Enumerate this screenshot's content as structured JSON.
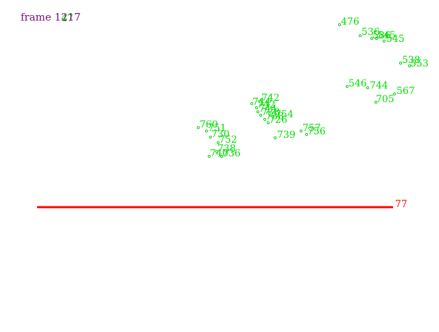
{
  "frame": {
    "label": "frame 1217"
  },
  "overlay_label": "47",
  "colors": {
    "background": "#ffffff",
    "points": "#00dd00",
    "frame_text": "#7a0b7a",
    "track_line": "#ff0000"
  },
  "points": [
    {
      "id": "476"
    },
    {
      "id": "536"
    },
    {
      "id": "545"
    },
    {
      "id": "538"
    },
    {
      "id": "553"
    },
    {
      "id": "546"
    },
    {
      "id": "744"
    },
    {
      "id": "567"
    },
    {
      "id": "705"
    },
    {
      "id": "742"
    },
    {
      "id": "744"
    },
    {
      "id": "754"
    },
    {
      "id": "739"
    },
    {
      "id": "757"
    },
    {
      "id": "756"
    },
    {
      "id": "760"
    },
    {
      "id": "751"
    },
    {
      "id": "730"
    },
    {
      "id": "752"
    },
    {
      "id": "738"
    },
    {
      "id": "740"
    },
    {
      "id": "736"
    }
  ],
  "track": {
    "label": "77"
  }
}
